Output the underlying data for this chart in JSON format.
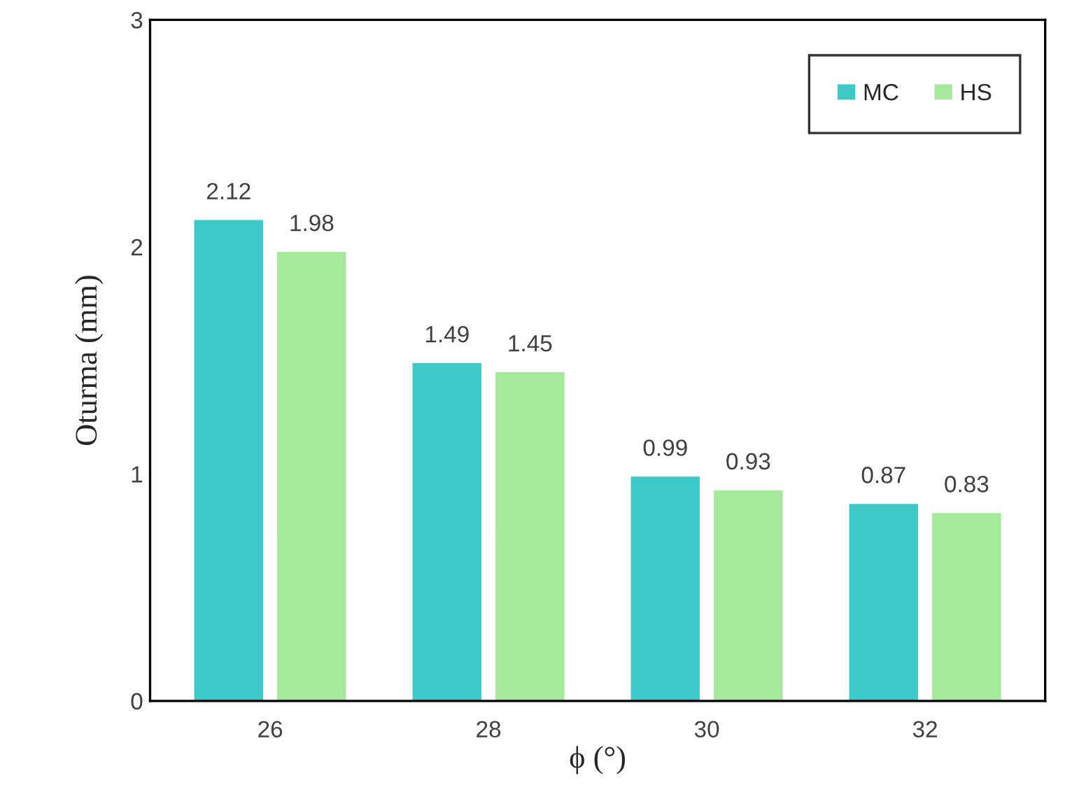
{
  "chart_data": {
    "type": "bar",
    "xlabel": "ϕ (°)",
    "ylabel": "Oturma (mm)",
    "categories": [
      "26",
      "28",
      "30",
      "32"
    ],
    "series": [
      {
        "name": "MC",
        "color": "#3ec8c8",
        "values": [
          2.12,
          1.49,
          0.99,
          0.87
        ]
      },
      {
        "name": "HS",
        "color": "#a6e89c",
        "values": [
          1.98,
          1.45,
          0.93,
          0.83
        ]
      }
    ],
    "ylim": [
      0,
      3
    ],
    "yticks": [
      0,
      1,
      2,
      3
    ],
    "grid": false,
    "legend": "top right",
    "data_labels": true
  }
}
